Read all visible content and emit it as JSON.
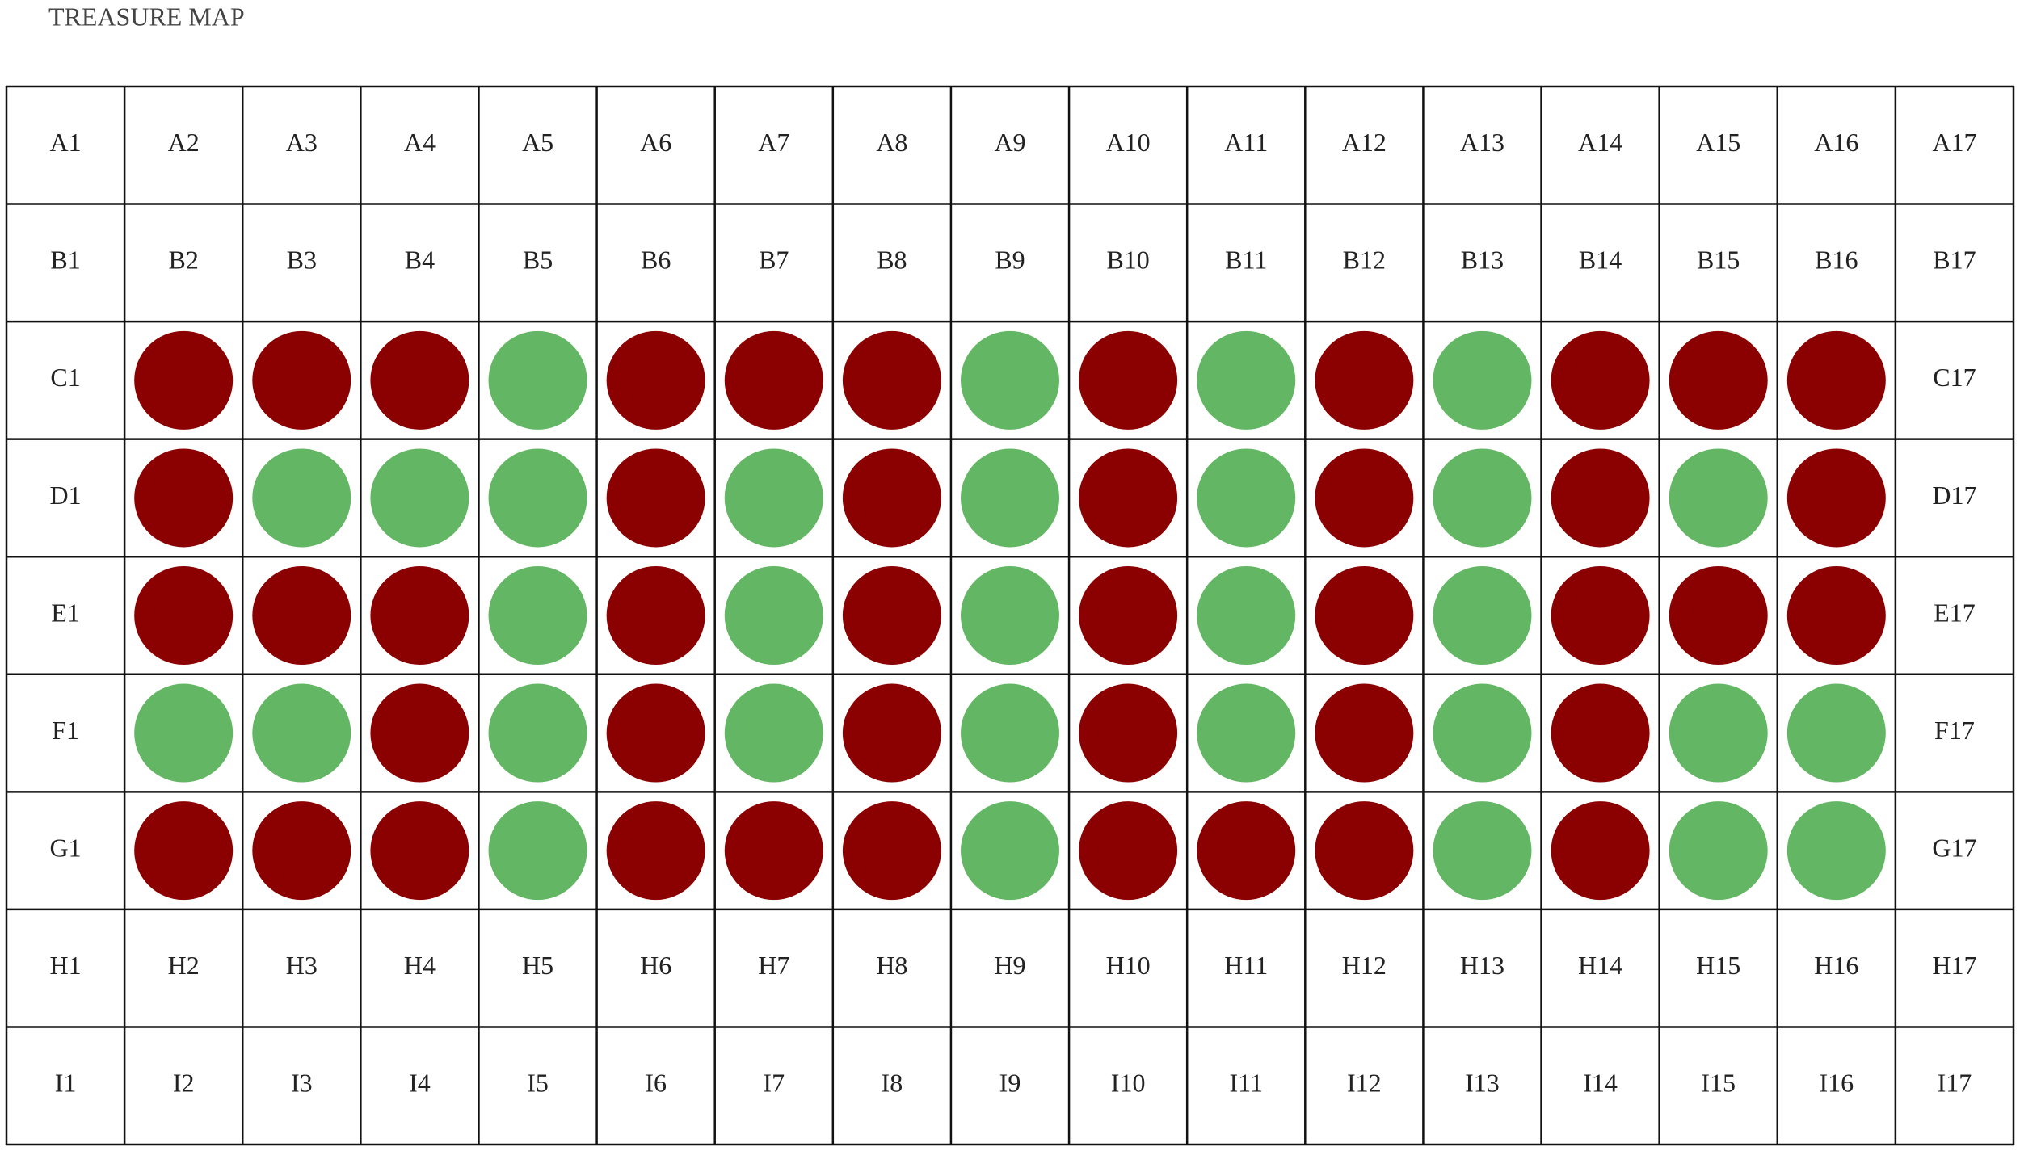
{
  "header": {
    "title": "TREASURE MAP"
  },
  "colors": {
    "red": "#8b0000",
    "green": "#63b663"
  },
  "grid": {
    "rows": [
      {
        "cells": [
          "A1",
          "A2",
          "A3",
          "A4",
          "A5",
          "A6",
          "A7",
          "A8",
          "A9",
          "A10",
          "A11",
          "A12",
          "A13",
          "A14",
          "A15",
          "A16",
          "A17"
        ]
      },
      {
        "cells": [
          "B1",
          "B2",
          "B3",
          "B4",
          "B5",
          "B6",
          "B7",
          "B8",
          "B9",
          "B10",
          "B11",
          "B12",
          "B13",
          "B14",
          "B15",
          "B16",
          "B17"
        ]
      },
      {
        "left": "C1",
        "right": "C17",
        "markers": [
          "red",
          "red",
          "red",
          "green",
          "red",
          "red",
          "red",
          "green",
          "red",
          "green",
          "red",
          "green",
          "red",
          "red",
          "red"
        ]
      },
      {
        "left": "D1",
        "right": "D17",
        "markers": [
          "red",
          "green",
          "green",
          "green",
          "red",
          "green",
          "red",
          "green",
          "red",
          "green",
          "red",
          "green",
          "red",
          "green",
          "red"
        ]
      },
      {
        "left": "E1",
        "right": "E17",
        "markers": [
          "red",
          "red",
          "red",
          "green",
          "red",
          "green",
          "red",
          "green",
          "red",
          "green",
          "red",
          "green",
          "red",
          "red",
          "red"
        ]
      },
      {
        "left": "F1",
        "right": "F17",
        "markers": [
          "green",
          "green",
          "red",
          "green",
          "red",
          "green",
          "red",
          "green",
          "red",
          "green",
          "red",
          "green",
          "red",
          "green",
          "green"
        ]
      },
      {
        "left": "G1",
        "right": "G17",
        "markers": [
          "red",
          "red",
          "red",
          "green",
          "red",
          "red",
          "red",
          "green",
          "red",
          "red",
          "red",
          "green",
          "red",
          "green",
          "green"
        ]
      },
      {
        "cells": [
          "H1",
          "H2",
          "H3",
          "H4",
          "H5",
          "H6",
          "H7",
          "H8",
          "H9",
          "H10",
          "H11",
          "H12",
          "H13",
          "H14",
          "H15",
          "H16",
          "H17"
        ]
      },
      {
        "cells": [
          "I1",
          "I2",
          "I3",
          "I4",
          "I5",
          "I6",
          "I7",
          "I8",
          "I9",
          "I10",
          "I11",
          "I12",
          "I13",
          "I14",
          "I15",
          "I16",
          "I17"
        ]
      }
    ]
  }
}
